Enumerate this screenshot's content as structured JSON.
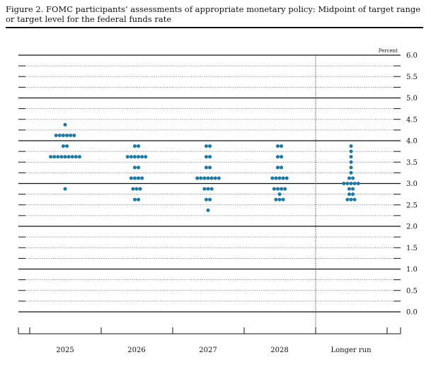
{
  "title_line1": "Figure 2. FOMC participants’ assessments of appropriate monetary policy: Midpoint of target range",
  "title_line2": "or target level for the federal funds rate",
  "chart_data": {
    "type": "scatter",
    "subtype": "dot plot",
    "unit_label": "Percent",
    "ylim": [
      0.0,
      6.0
    ],
    "y_ticks": [
      "6.0",
      "5.5",
      "5.0",
      "4.5",
      "4.0",
      "3.5",
      "3.0",
      "2.5",
      "2.0",
      "1.5",
      "1.0",
      "0.5",
      "0.0"
    ],
    "categories": [
      "2025",
      "2026",
      "2027",
      "2028",
      "Longer run"
    ],
    "dots": [
      {
        "category": "2025",
        "points": [
          {
            "rate": 4.375,
            "count": 1
          },
          {
            "rate": 4.125,
            "count": 6
          },
          {
            "rate": 3.875,
            "count": 2
          },
          {
            "rate": 3.625,
            "count": 9
          },
          {
            "rate": 2.875,
            "count": 1
          }
        ]
      },
      {
        "category": "2026",
        "points": [
          {
            "rate": 3.875,
            "count": 2
          },
          {
            "rate": 3.625,
            "count": 6
          },
          {
            "rate": 3.375,
            "count": 2
          },
          {
            "rate": 3.125,
            "count": 4
          },
          {
            "rate": 2.875,
            "count": 3
          },
          {
            "rate": 2.625,
            "count": 2
          }
        ]
      },
      {
        "category": "2027",
        "points": [
          {
            "rate": 3.875,
            "count": 2
          },
          {
            "rate": 3.625,
            "count": 2
          },
          {
            "rate": 3.375,
            "count": 2
          },
          {
            "rate": 3.125,
            "count": 7
          },
          {
            "rate": 2.875,
            "count": 3
          },
          {
            "rate": 2.625,
            "count": 2
          },
          {
            "rate": 2.375,
            "count": 1
          }
        ]
      },
      {
        "category": "2028",
        "points": [
          {
            "rate": 3.875,
            "count": 2
          },
          {
            "rate": 3.625,
            "count": 2
          },
          {
            "rate": 3.375,
            "count": 2
          },
          {
            "rate": 3.125,
            "count": 5
          },
          {
            "rate": 2.875,
            "count": 4
          },
          {
            "rate": 2.75,
            "count": 1
          },
          {
            "rate": 2.625,
            "count": 3
          }
        ]
      },
      {
        "category": "Longer run",
        "points": [
          {
            "rate": 3.875,
            "count": 1
          },
          {
            "rate": 3.75,
            "count": 1
          },
          {
            "rate": 3.625,
            "count": 1
          },
          {
            "rate": 3.5,
            "count": 1
          },
          {
            "rate": 3.375,
            "count": 1
          },
          {
            "rate": 3.25,
            "count": 1
          },
          {
            "rate": 3.125,
            "count": 2
          },
          {
            "rate": 3.0,
            "count": 5
          },
          {
            "rate": 2.875,
            "count": 2
          },
          {
            "rate": 2.75,
            "count": 2
          },
          {
            "rate": 2.625,
            "count": 3
          }
        ]
      }
    ],
    "dot_color": "#1b79a8",
    "grid": true,
    "grid_style": "solid at whole numbers, dotted at other quarter-point levels",
    "separator": "dotted vertical line before Longer run"
  }
}
